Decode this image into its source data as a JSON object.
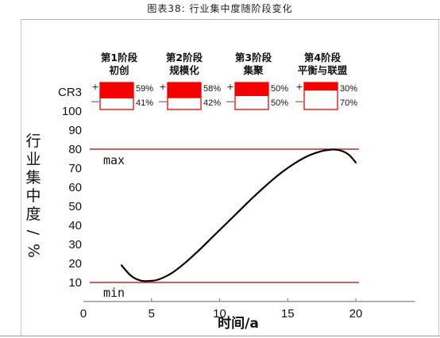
{
  "caption": "图表38:   行业集中度随阶段变化",
  "chart_data": {
    "type": "line",
    "title": "",
    "ylabel_chars": [
      "行",
      "业",
      "集",
      "中",
      "度",
      "/",
      "%"
    ],
    "ylabel": "行业集中度/%",
    "xlabel": "时间/a",
    "y_axis_title": "CR3",
    "xlim": [
      0,
      24
    ],
    "ylim": [
      0,
      100
    ],
    "x_ticks": [
      0,
      5,
      10,
      15,
      20
    ],
    "y_ticks": [
      10,
      20,
      30,
      40,
      50,
      60,
      70,
      80,
      90,
      100
    ],
    "reference_lines": [
      {
        "label": "max",
        "y": 80,
        "color": "#d42020"
      },
      {
        "label": "min",
        "y": 10,
        "color": "#d42020"
      }
    ],
    "series": [
      {
        "x": [
          2.8,
          3.5,
          4.2,
          4.8,
          5.5,
          6.5,
          7.5,
          8.5,
          9.5,
          10.5,
          11.5,
          12.5,
          13.5,
          14.5,
          15.5,
          16.5,
          17.5,
          18.0,
          18.5,
          19.0,
          19.5,
          20.0
        ],
        "y": [
          19,
          13.5,
          11,
          10.8,
          11.5,
          15,
          20.5,
          27,
          34,
          41,
          48,
          55,
          61.5,
          67.5,
          72.5,
          76.5,
          79,
          79.6,
          79.8,
          79,
          77,
          73
        ]
      }
    ],
    "stages": [
      {
        "name": "第1阶段",
        "sub": "初创",
        "plus_pct": "59%",
        "minus_pct": "41%",
        "fill": 0.59
      },
      {
        "name": "第2阶段",
        "sub": "规模化",
        "plus_pct": "58%",
        "minus_pct": "42%",
        "fill": 0.58
      },
      {
        "name": "第3阶段",
        "sub": "集聚",
        "plus_pct": "50%",
        "minus_pct": "50%",
        "fill": 0.5
      },
      {
        "name": "第4阶段",
        "sub": "平衡与联盟",
        "plus_pct": "30%",
        "minus_pct": "70%",
        "fill": 0.3
      }
    ],
    "plus_sign": "+",
    "minus_sign": "—",
    "colors": {
      "accent": "#f50000",
      "axis": "#999999",
      "line": "#000000"
    }
  }
}
